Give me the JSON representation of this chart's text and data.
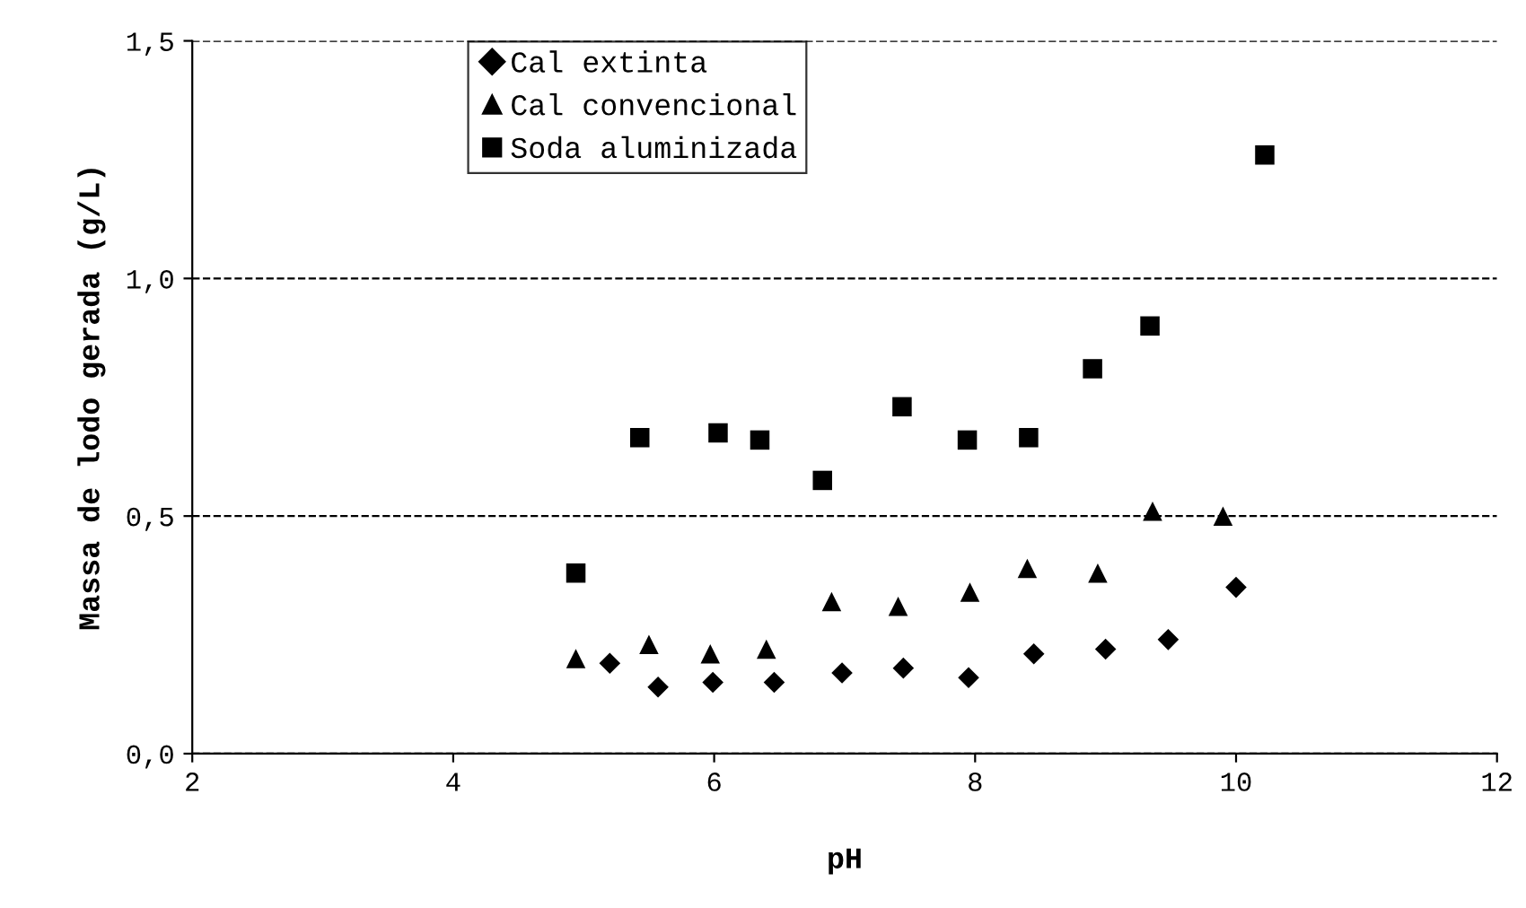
{
  "chart_data": {
    "type": "scatter",
    "xlabel": "pH",
    "ylabel": "Massa de lodo gerada (g/L)",
    "xlim": [
      2,
      12
    ],
    "xticks": [
      2,
      4,
      6,
      8,
      10,
      12
    ],
    "ylim": [
      0,
      1.5
    ],
    "yticks": [
      {
        "value": 0,
        "label": "0,0"
      },
      {
        "value": 0.5,
        "label": "0,5"
      },
      {
        "value": 1.0,
        "label": "1,0"
      },
      {
        "value": 1.5,
        "label": "1,5"
      }
    ],
    "grid": "y",
    "legend": "top left",
    "line_style": "dashed",
    "series": [
      {
        "name": "Cal extinta",
        "color": "#000000",
        "marker": "diamond",
        "x": [
          5.2,
          5.57,
          5.99,
          6.46,
          6.98,
          7.45,
          7.95,
          8.45,
          9.0,
          9.48,
          10.0
        ],
        "values": [
          0.19,
          0.14,
          0.15,
          0.15,
          0.17,
          0.18,
          0.16,
          0.21,
          0.22,
          0.24,
          0.35
        ]
      },
      {
        "name": "Cal convencional",
        "color": "#000000",
        "marker": "triangle",
        "x": [
          4.94,
          5.5,
          5.97,
          6.4,
          6.9,
          7.41,
          7.96,
          8.4,
          8.94,
          9.36,
          9.9
        ],
        "values": [
          0.2,
          0.23,
          0.21,
          0.22,
          0.32,
          0.31,
          0.34,
          0.39,
          0.38,
          0.51,
          0.5
        ]
      },
      {
        "name": "Soda aluminizada",
        "color": "#000000",
        "marker": "square",
        "x": [
          4.94,
          5.43,
          6.03,
          6.35,
          6.83,
          7.44,
          7.94,
          8.41,
          8.9,
          9.34,
          10.22
        ],
        "values": [
          0.38,
          0.665,
          0.675,
          0.66,
          0.575,
          0.73,
          0.66,
          0.665,
          0.81,
          0.9,
          1.26
        ]
      }
    ]
  }
}
